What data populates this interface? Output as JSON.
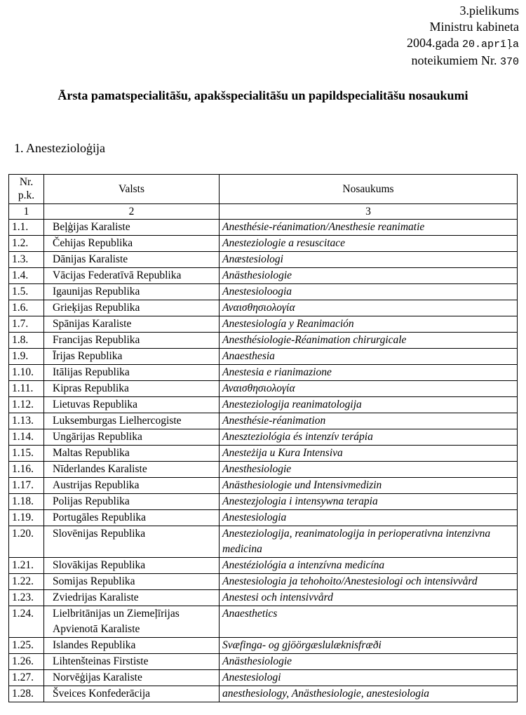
{
  "header": {
    "lines": [
      "3.pielikums",
      "Ministru kabineta"
    ],
    "date_prefix": "2004.gada",
    "date": "20.aprīļa",
    "act_prefix": "noteikumiem Nr.",
    "act_number": "370"
  },
  "title": "Ārsta pamatspecialitāšu, apakšspecialitāšu un papildspecialitāšu nosaukumi",
  "section": "1. Anestezioloģija",
  "table": {
    "headers": [
      "Nr. p.k.",
      "Valsts",
      "Nosaukums"
    ],
    "column_numbers": [
      "1",
      "2",
      "3"
    ],
    "rows": [
      [
        "1.1.",
        "Beļģijas Karaliste",
        "Anesthésie-réanimation/Anesthesie reanimatie"
      ],
      [
        "1.2.",
        "Čehijas Republika",
        "Anesteziologie a resuscitace"
      ],
      [
        "1.3.",
        "Dānijas Karaliste",
        "Anæstesiologi"
      ],
      [
        "1.4.",
        "Vācijas Federatīvā Republika",
        "Anästhesiologie"
      ],
      [
        "1.5.",
        "Igaunijas Republika",
        "Anestesioloogia"
      ],
      [
        "1.6.",
        "Grieķijas Republika",
        "Αναισθησιολογία"
      ],
      [
        "1.7.",
        "Spānijas Karaliste",
        "Anestesiología y Reanimación"
      ],
      [
        "1.8.",
        "Francijas Republika",
        "Anesthésiologie-Réanimation chirurgicale"
      ],
      [
        "1.9.",
        "Īrijas Republika",
        "Anaesthesia"
      ],
      [
        "1.10.",
        "Itālijas Republika",
        "Anestesia e rianimazione"
      ],
      [
        "1.11.",
        "Kipras Republika",
        "Αναισθησιολογία"
      ],
      [
        "1.12.",
        "Lietuvas Republika",
        "Anesteziologija reanimatologija"
      ],
      [
        "1.13.",
        "Luksemburgas Lielhercogiste",
        "Anesthésie-réanimation"
      ],
      [
        "1.14.",
        "Ungārijas Republika",
        "Aneszteziológia és intenzív terápia"
      ],
      [
        "1.15.",
        "Maltas Republika",
        "Anesteżija u Kura Intensiva"
      ],
      [
        "1.16.",
        "Nīderlandes Karaliste",
        "Anesthesiologie"
      ],
      [
        "1.17.",
        "Austrijas Republika",
        "Anästhesiologie und Intensivmedizin"
      ],
      [
        "1.18.",
        "Polijas Republika",
        "Anestezjologia i intensywna terapia"
      ],
      [
        "1.19.",
        "Portugāles Republika",
        "Anestesiologia"
      ],
      [
        "1.20.",
        "Slovēnijas Republika",
        "Anesteziologija, reanimatologija in perioperativna intenzivna medicina"
      ],
      [
        "1.21.",
        "Slovākijas Republika",
        "Anestéziológia a intenzívna medicína"
      ],
      [
        "1.22.",
        "Somijas Republika",
        "Anestesiologia ja tehohoito/Anestesiologi och intensivvård"
      ],
      [
        "1.23.",
        "Zviedrijas Karaliste",
        "Anestesi och intensivvård"
      ],
      [
        "1.24.",
        "Lielbritānijas un Ziemeļīrijas Apvienotā Karaliste",
        "Anaesthetics"
      ],
      [
        "1.25.",
        "Islandes Republika",
        "Svæfinga- og gjöörgæslulæknisfræði"
      ],
      [
        "1.26.",
        "Lihtenšteinas Firstiste",
        "Anästhesiologie"
      ],
      [
        "1.27.",
        "Norvēģijas Karaliste",
        "Anestesiologi"
      ],
      [
        "1.28.",
        "Šveices Konfederācija",
        "anesthesiology, Anästhesiologie, anestesiologia"
      ]
    ]
  }
}
